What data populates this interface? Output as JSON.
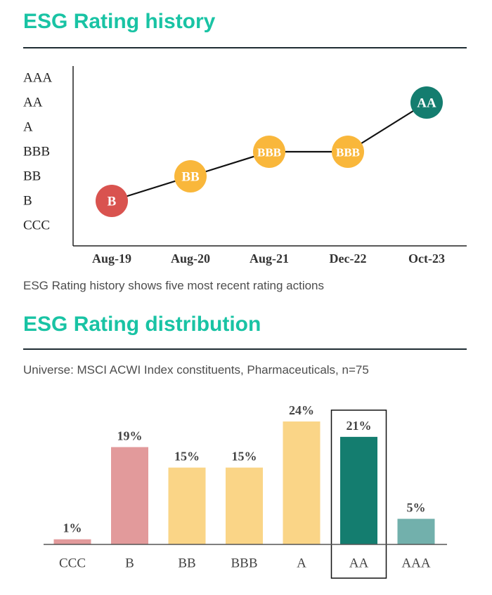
{
  "history": {
    "title": "ESG Rating history",
    "caption": "ESG Rating history shows five most recent rating actions"
  },
  "distribution": {
    "title": "ESG Rating distribution",
    "universe": "Universe: MSCI ACWI Index constituents, Pharmaceuticals, n=75"
  },
  "colors": {
    "title": "#19c3a4",
    "rule": "#1f2d33",
    "red": "#d9534f",
    "amber": "#f9b73b",
    "teal": "#147d6f",
    "bar_red": "#e29a9b",
    "bar_amber": "#fad587",
    "bar_teal": "#147d6f",
    "bar_light_teal": "#72b0ac"
  },
  "chart_data": [
    {
      "type": "line",
      "title": "ESG Rating history",
      "y_categories": [
        "CCC",
        "B",
        "BB",
        "BBB",
        "A",
        "AA",
        "AAA"
      ],
      "x": [
        "Aug-19",
        "Aug-20",
        "Aug-21",
        "Dec-22",
        "Oct-23"
      ],
      "values": [
        "B",
        "BB",
        "BBB",
        "BBB",
        "AA"
      ],
      "marker_colors": [
        "red",
        "amber",
        "amber",
        "amber",
        "teal"
      ]
    },
    {
      "type": "bar",
      "title": "ESG Rating distribution",
      "categories": [
        "CCC",
        "B",
        "BB",
        "BBB",
        "A",
        "AA",
        "AAA"
      ],
      "values": [
        1,
        19,
        15,
        15,
        24,
        21,
        5
      ],
      "labels": [
        "1%",
        "19%",
        "15%",
        "15%",
        "24%",
        "21%",
        "5%"
      ],
      "colors": [
        "bar_red",
        "bar_red",
        "bar_amber",
        "bar_amber",
        "bar_amber",
        "bar_teal",
        "bar_light_teal"
      ],
      "highlighted": "AA",
      "ylim": [
        0,
        24
      ]
    }
  ]
}
